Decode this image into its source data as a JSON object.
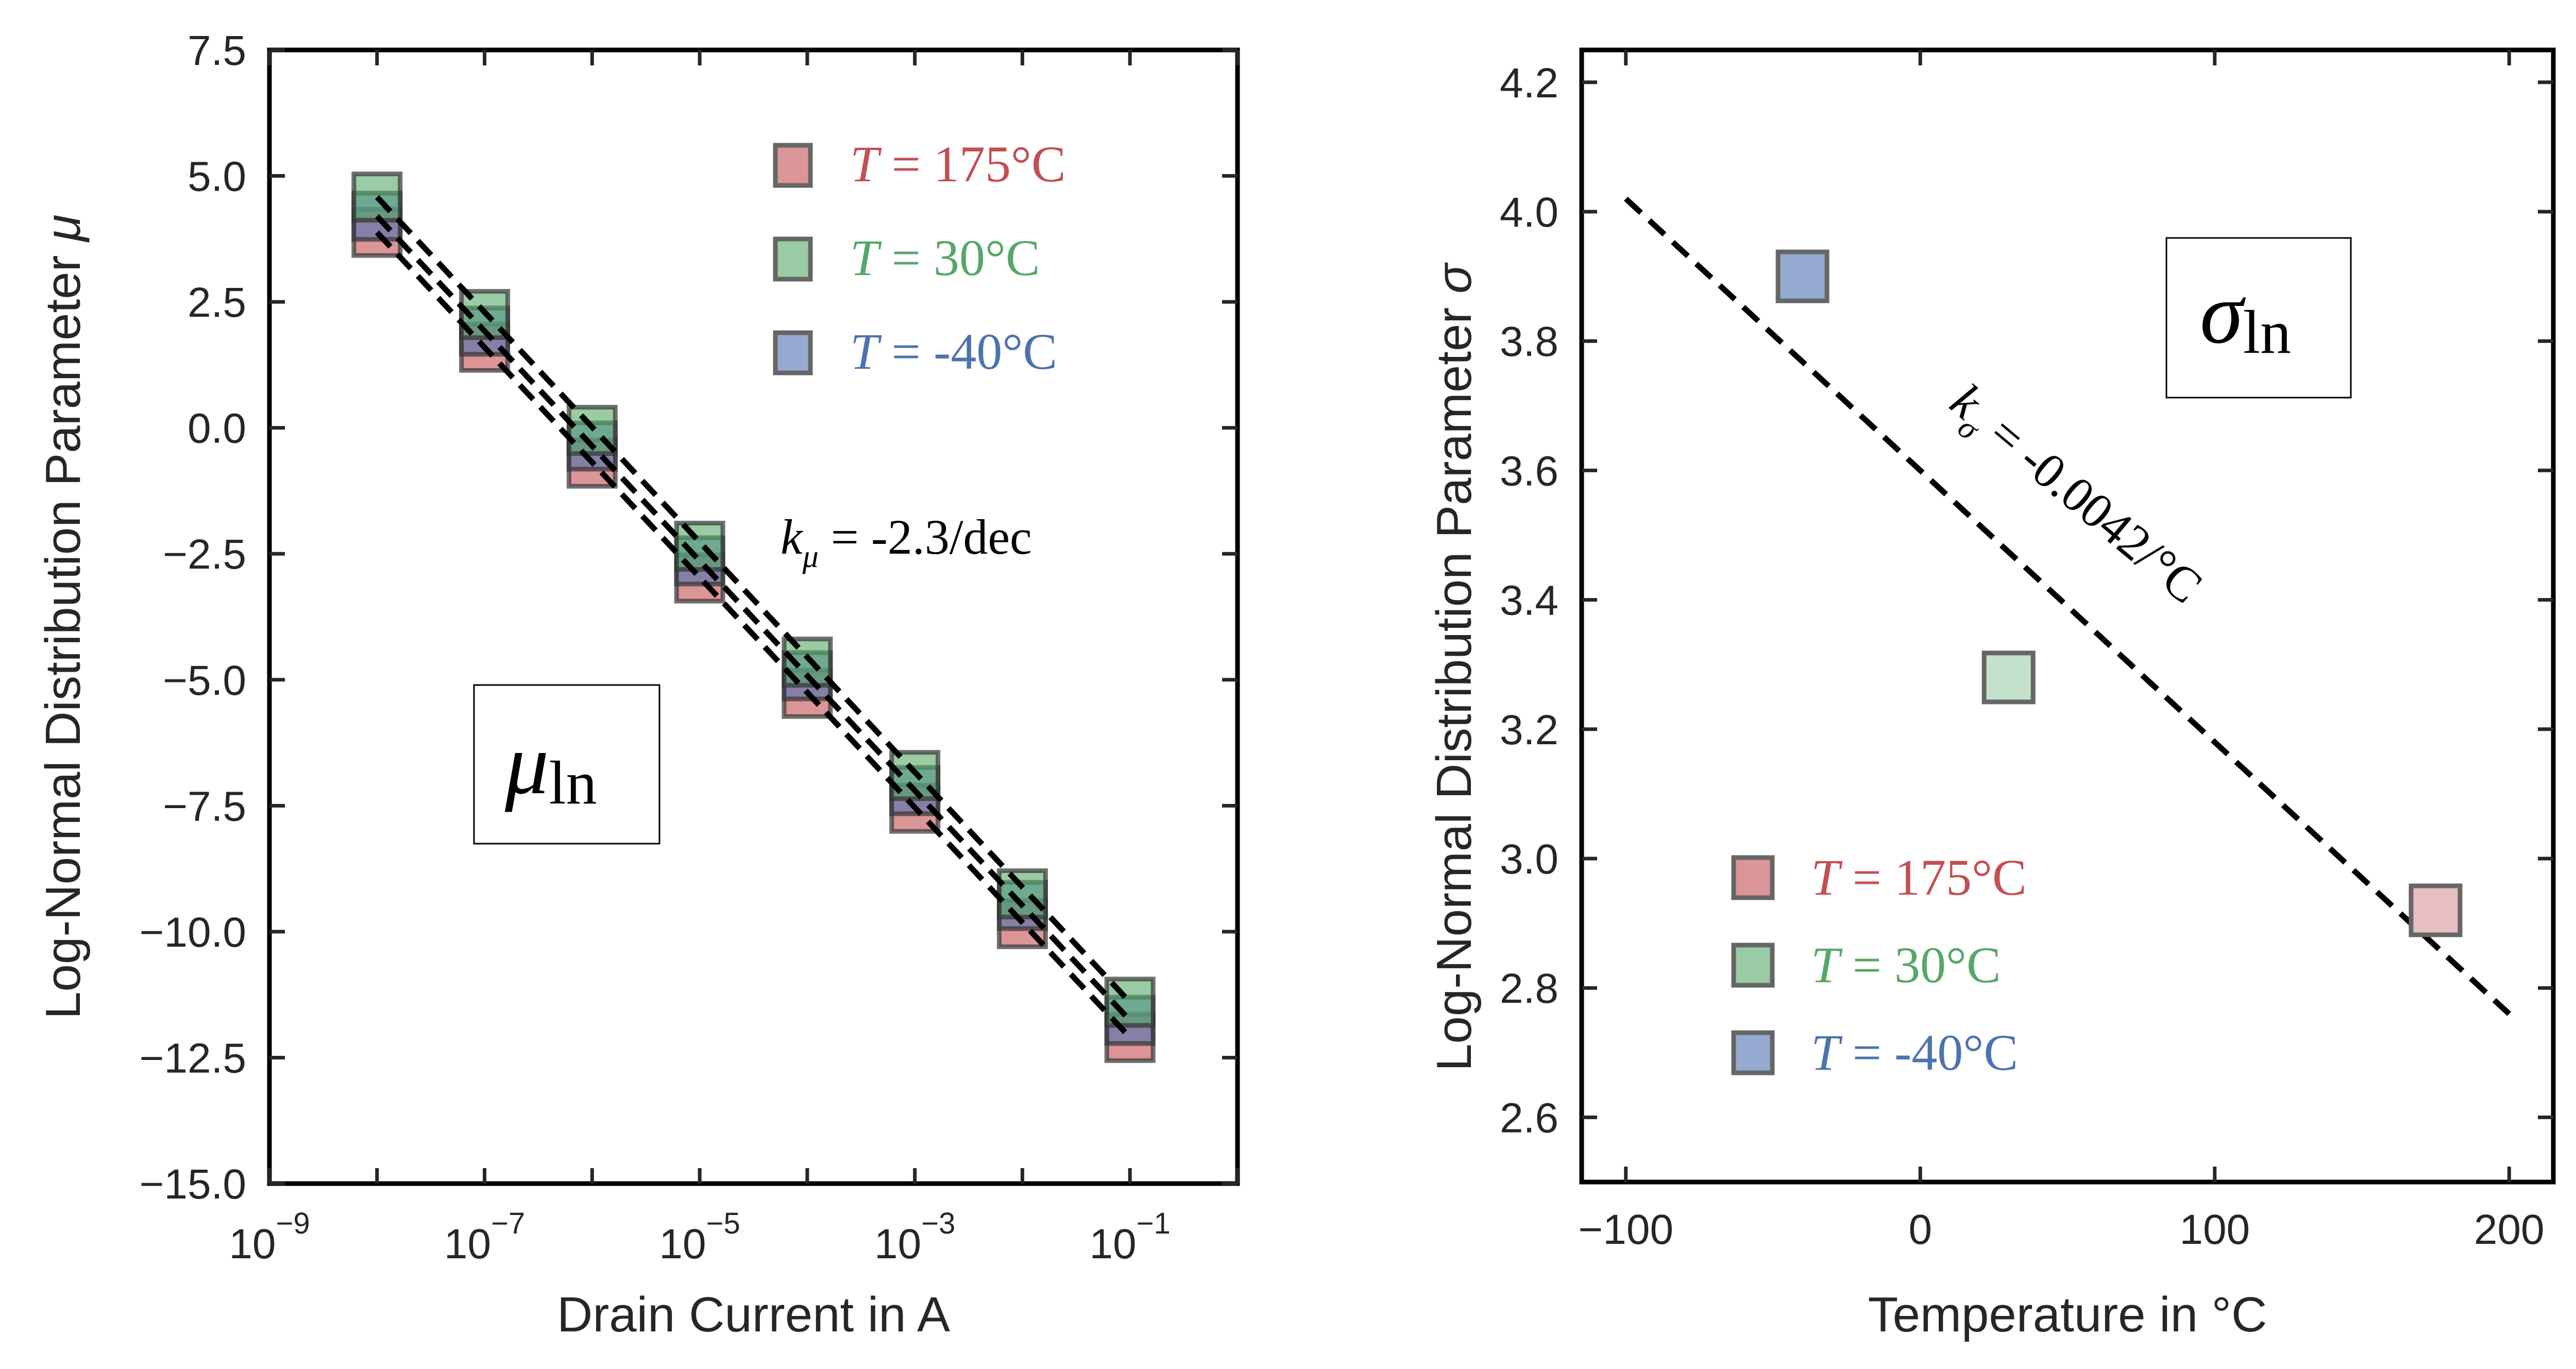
{
  "chart_data": [
    {
      "type": "scatter",
      "panel": "left",
      "xscale": "log",
      "xlabel": "Drain Current in A",
      "ylabel": "Log-Normal Distribution Parameter μ",
      "xlim": [
        1e-09,
        1.0
      ],
      "ylim": [
        -15.0,
        7.5
      ],
      "xticks": [
        1e-09,
        1e-07,
        1e-05,
        0.001,
        0.1
      ],
      "xtick_labels": [
        {
          "base": "10",
          "exp": "−9"
        },
        {
          "base": "10",
          "exp": "−7"
        },
        {
          "base": "10",
          "exp": "−5"
        },
        {
          "base": "10",
          "exp": "−3"
        },
        {
          "base": "10",
          "exp": "−1"
        }
      ],
      "yticks": [
        7.5,
        5.0,
        2.5,
        0.0,
        -2.5,
        -5.0,
        -7.5,
        -10.0,
        -12.5,
        -15.0
      ],
      "ytick_labels": [
        "7.5",
        "5.0",
        "2.5",
        "0.0",
        "−2.5",
        "−5.0",
        "−7.5",
        "−10.0",
        "−12.5",
        "−15.0"
      ],
      "grid": false,
      "x": [
        1e-08,
        1e-07,
        1e-06,
        1e-05,
        0.0001,
        0.001,
        0.01,
        0.1
      ],
      "series": [
        {
          "name": "T = 175°C",
          "label_var": "T",
          "label_eq": " = ",
          "label_val": "175°C",
          "color": "#C44E52",
          "fill": "#DB9497",
          "values": [
            3.88,
            1.6,
            -0.7,
            -2.98,
            -5.27,
            -7.55,
            -9.84,
            -12.1
          ],
          "fit": [
            3.88,
            -12.1
          ]
        },
        {
          "name": "T = 30°C",
          "label_var": "T",
          "label_eq": " = ",
          "label_val": "30°C",
          "color": "#55A868",
          "fill": "#99CBA4",
          "values": [
            4.58,
            2.25,
            -0.05,
            -2.35,
            -4.65,
            -6.9,
            -9.25,
            -11.4
          ],
          "fit": [
            4.58,
            -11.4
          ]
        },
        {
          "name": "T = -40°C",
          "label_var": "T",
          "label_eq": " = ",
          "label_val": "-40°C",
          "color": "#4C72B0",
          "fill": "#94AAD0",
          "values": [
            4.2,
            1.92,
            -0.36,
            -2.64,
            -4.92,
            -7.2,
            -9.48,
            -11.76
          ],
          "fit": [
            4.2,
            -11.76
          ]
        }
      ],
      "legend_position": "top-right",
      "annotations": {
        "slope_text": {
          "var": "k",
          "sub": "μ",
          "rest": " = -2.3/dec"
        },
        "box_text": {
          "main": "μ",
          "sub": "ln"
        }
      }
    },
    {
      "type": "scatter",
      "panel": "right",
      "xlabel": "Temperature in °C",
      "ylabel": "Log-Normal Distribution Parameter σ",
      "xlim": [
        -115,
        215
      ],
      "ylim": [
        2.5,
        4.25
      ],
      "xticks": [
        -100,
        0,
        100,
        200
      ],
      "xtick_labels": [
        "−100",
        "0",
        "100",
        "200"
      ],
      "yticks": [
        2.6,
        2.8,
        3.0,
        3.2,
        3.4,
        3.6,
        3.8,
        4.0,
        4.2
      ],
      "ytick_labels": [
        "2.6",
        "2.8",
        "3.0",
        "3.2",
        "3.4",
        "3.6",
        "3.8",
        "4.0",
        "4.2"
      ],
      "grid": false,
      "series": [
        {
          "name": "T = 175°C",
          "label_var": "T",
          "label_eq": " = ",
          "label_val": "175°C",
          "color": "#C44E52",
          "fill": "#E7BFC1",
          "x": 175,
          "value": 2.92
        },
        {
          "name": "T = 30°C",
          "label_var": "T",
          "label_eq": " = ",
          "label_val": "30°C",
          "color": "#55A868",
          "fill": "#C4E2CB",
          "x": 30,
          "value": 3.28
        },
        {
          "name": "T = -40°C",
          "label_var": "T",
          "label_eq": " = ",
          "label_val": "-40°C",
          "color": "#4C72B0",
          "fill": "#94AAD0",
          "x": -40,
          "value": 3.9
        }
      ],
      "legend_fills": [
        "#DB9497",
        "#99CBA4",
        "#94AAD0"
      ],
      "fit_line": {
        "x": [
          -100,
          200
        ],
        "y": [
          4.02,
          2.76
        ]
      },
      "legend_position": "bottom-left",
      "annotations": {
        "slope_text": {
          "var": "k",
          "sub": "σ",
          "rest": " = -0.0042/°C"
        },
        "box_text": {
          "main": "σ",
          "sub": "ln"
        }
      }
    }
  ]
}
